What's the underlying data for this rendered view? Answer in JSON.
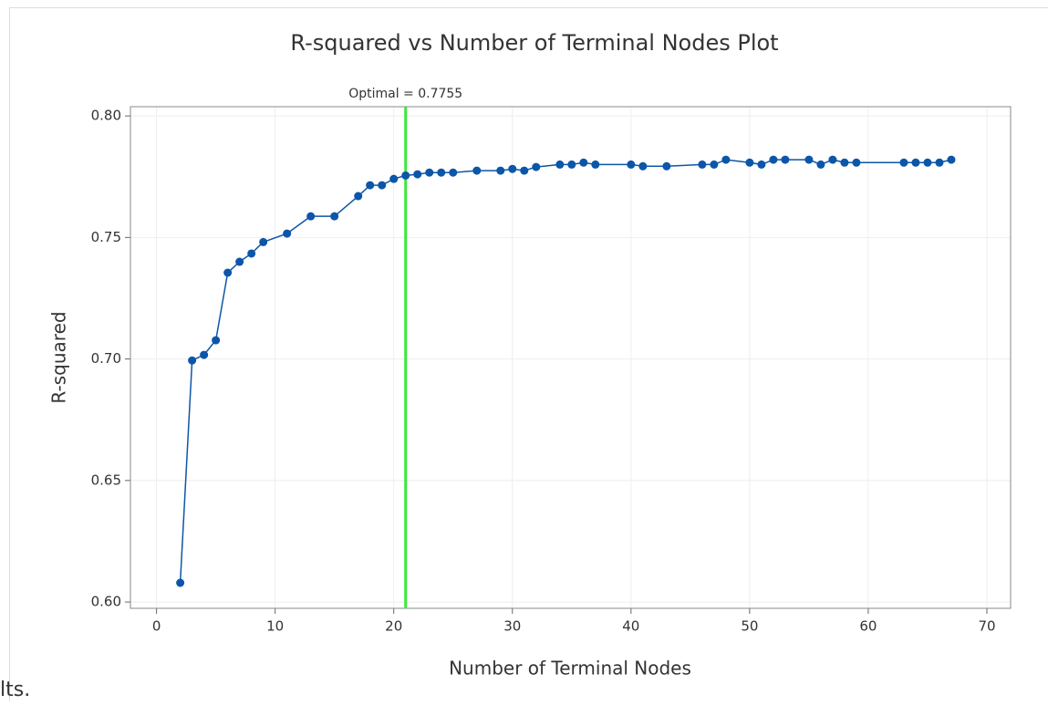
{
  "chart_data": {
    "type": "line",
    "title": "R-squared vs Number of Terminal Nodes Plot",
    "xlabel": "Number of Terminal Nodes",
    "ylabel": "R-squared",
    "x": [
      2,
      3,
      4,
      5,
      6,
      7,
      8,
      9,
      11,
      13,
      15,
      17,
      18,
      19,
      20,
      21,
      22,
      23,
      24,
      25,
      27,
      29,
      30,
      31,
      32,
      34,
      35,
      36,
      37,
      40,
      41,
      43,
      46,
      47,
      48,
      50,
      51,
      52,
      53,
      55,
      56,
      57,
      58,
      59,
      63,
      64,
      65,
      66,
      67
    ],
    "series": [
      {
        "name": "R-squared",
        "color": "#0b56a8",
        "values": [
          0.6079,
          0.6994,
          0.7017,
          0.7077,
          0.7355,
          0.74,
          0.7434,
          0.7481,
          0.7516,
          0.7587,
          0.7587,
          0.767,
          0.7715,
          0.7715,
          0.7741,
          0.7755,
          0.776,
          0.7767,
          0.7767,
          0.7767,
          0.7775,
          0.7775,
          0.7782,
          0.7775,
          0.779,
          0.78,
          0.78,
          0.7808,
          0.78,
          0.78,
          0.7793,
          0.7793,
          0.78,
          0.78,
          0.782,
          0.7808,
          0.78,
          0.782,
          0.782,
          0.782,
          0.78,
          0.782,
          0.7808,
          0.7808,
          0.7808,
          0.7808,
          0.7808,
          0.7808,
          0.782
        ]
      }
    ],
    "reference_line": {
      "x": 21,
      "label": "Optimal = 0.7755",
      "color": "#3be83b"
    },
    "xlim": [
      -2.2,
      72
    ],
    "xticks": [
      0,
      10,
      20,
      30,
      40,
      50,
      60,
      70
    ],
    "ylim": [
      0.5974,
      0.8038
    ],
    "yticks": [
      {
        "value": 0.6,
        "label": "0.60"
      },
      {
        "value": 0.65,
        "label": "0.65"
      },
      {
        "value": 0.7,
        "label": "0.70"
      },
      {
        "value": 0.75,
        "label": "0.75"
      },
      {
        "value": 0.8,
        "label": "0.80"
      }
    ],
    "grid": true
  },
  "page_fragment": "lts."
}
